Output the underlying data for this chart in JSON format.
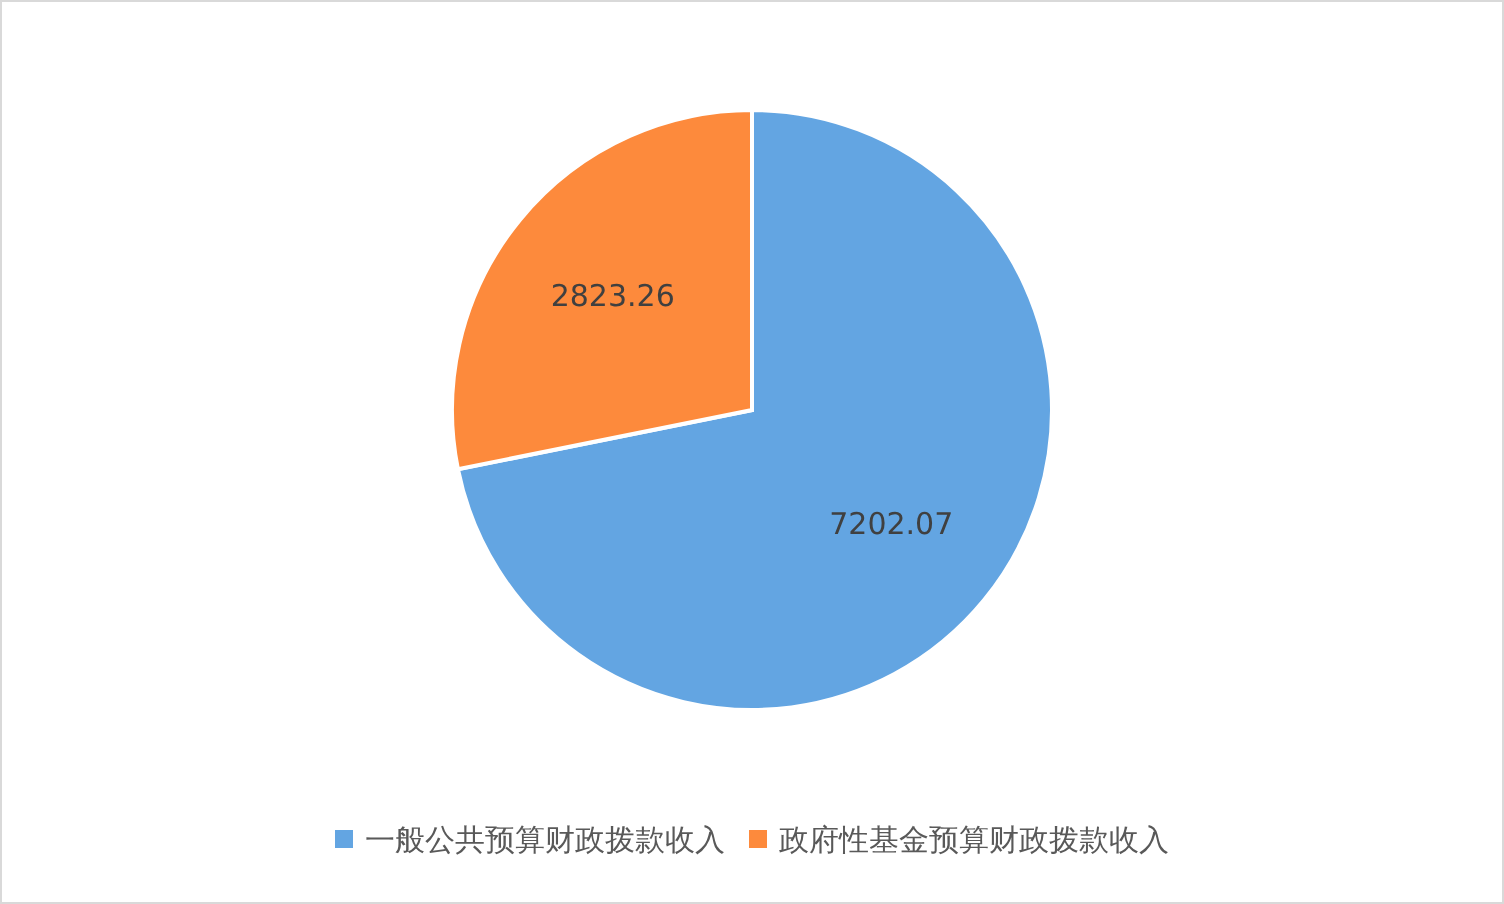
{
  "chart_data": {
    "type": "pie",
    "categories": [
      "一般公共预算财政拨款收入",
      "政府性基金预算财政拨款收入"
    ],
    "values": [
      7202.07,
      2823.26
    ],
    "colors": [
      "#63a5e2",
      "#fd8a3c"
    ],
    "data_labels": true,
    "legend": "bottom"
  }
}
